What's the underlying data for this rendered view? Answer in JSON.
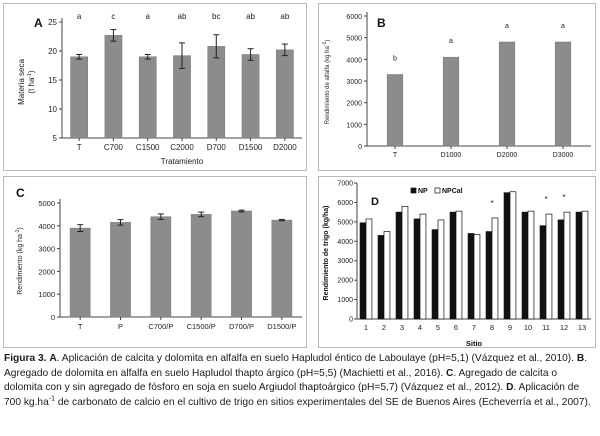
{
  "chart_data": [
    {
      "id": "A",
      "panel_label": "A",
      "type": "bar",
      "categories": [
        "T",
        "C700",
        "C1500",
        "C2000",
        "D700",
        "D1500",
        "D2000"
      ],
      "values": [
        19.0,
        22.7,
        19.0,
        19.2,
        20.8,
        19.4,
        20.2
      ],
      "errors": [
        0.4,
        1.0,
        0.4,
        2.2,
        2.0,
        1.0,
        1.0
      ],
      "letters": [
        "a",
        "c",
        "a",
        "ab",
        "bc",
        "ab",
        "ab"
      ],
      "xlabel": "Tratamiento",
      "ylabel": "Materia seca",
      "ylabel2": "(t ha",
      "ylabel2_sup": "-1",
      "ylabel2_end": ")",
      "yticks": [
        "5",
        "10",
        "15",
        "20",
        "25"
      ],
      "ylim": [
        5,
        25
      ],
      "grid": false,
      "bar_color": "#8c8c8c"
    },
    {
      "id": "B",
      "panel_label": "B",
      "type": "bar",
      "categories": [
        "T",
        "D1000",
        "D2000",
        "D3000"
      ],
      "values": [
        3300,
        4100,
        4800,
        4800
      ],
      "letters": [
        "b",
        "a",
        "a",
        "a"
      ],
      "xlabel": "",
      "ylabel": "Rendimiento de alfalfa (kg ha",
      "ylabel_sup": "-1",
      "ylabel_end": ")",
      "yticks": [
        "0",
        "1000",
        "2000",
        "3000",
        "4000",
        "5000",
        "6000"
      ],
      "ylim": [
        0,
        6000
      ],
      "grid": false,
      "bar_color": "#8c8c8c"
    },
    {
      "id": "C",
      "panel_label": "C",
      "type": "bar",
      "categories": [
        "T",
        "P",
        "C700/P",
        "C1500/P",
        "D700/P",
        "D1500/P"
      ],
      "values": [
        3900,
        4150,
        4400,
        4500,
        4650,
        4250
      ],
      "errors": [
        150,
        120,
        120,
        100,
        40,
        30
      ],
      "xlabel": "",
      "ylabel": "Rendimiento (kg ha",
      "ylabel_sup": "-1",
      "ylabel_end": ")",
      "yticks": [
        "0",
        "1000",
        "2000",
        "3000",
        "4000",
        "5000"
      ],
      "ylim": [
        0,
        5000
      ],
      "grid": false,
      "bar_color": "#8c8c8c"
    },
    {
      "id": "D",
      "panel_label": "D",
      "type": "bar",
      "categories": [
        "1",
        "2",
        "3",
        "4",
        "5",
        "6",
        "7",
        "8",
        "9",
        "10",
        "11",
        "12",
        "13"
      ],
      "series": [
        {
          "name": "NP",
          "values": [
            4950,
            4300,
            5500,
            5150,
            4600,
            5500,
            4400,
            4500,
            6500,
            5500,
            4800,
            5100,
            5500
          ],
          "color": "#111111"
        },
        {
          "name": "NPCal",
          "values": [
            5150,
            4500,
            5800,
            5400,
            5100,
            5550,
            4350,
            5200,
            6550,
            5550,
            5400,
            5500,
            5550
          ],
          "color": "#ffffff"
        }
      ],
      "significance": [
        "",
        "",
        "",
        "",
        "",
        "",
        "",
        "*",
        "",
        "",
        "*",
        "*",
        ""
      ],
      "xlabel": "Sitio",
      "ylabel": "Rendimiento de trigo (kg/ha)",
      "yticks": [
        "0",
        "1000",
        "2000",
        "3000",
        "4000",
        "5000",
        "6000",
        "7000"
      ],
      "ylim": [
        0,
        7000
      ],
      "grid": false,
      "legend_position": "top"
    }
  ],
  "caption": {
    "fig_label": "Figura 3.",
    "a_letter": "A",
    "a_text": ". Aplicación de calcita y dolomita en alfalfa en suelo Hapludol éntico de Laboulaye (pH=5,1) (Vázquez et al., 2010). ",
    "b_letter": "B",
    "b_text": ". Agregado de dolomita en alfalfa en suelo Hapludol thapto árgico (pH=5,5) (Machietti et al., 2016). ",
    "c_letter": "C",
    "c_text": ". Agregado de calcita o dolomita con y sin agregado de fósforo en soja en suelo Argiudol thaptoárgico (pH=5,7) (Vázquez et al., 2012). ",
    "d_letter": "D",
    "d_text_1": ". Aplicación de 700 kg.ha",
    "d_sup": "-1",
    "d_text_2": " de carbonato de calcio en el cultivo de trigo en sitios experimentales del SE de Buenos Aires (Echeverría et al., 2007)."
  }
}
